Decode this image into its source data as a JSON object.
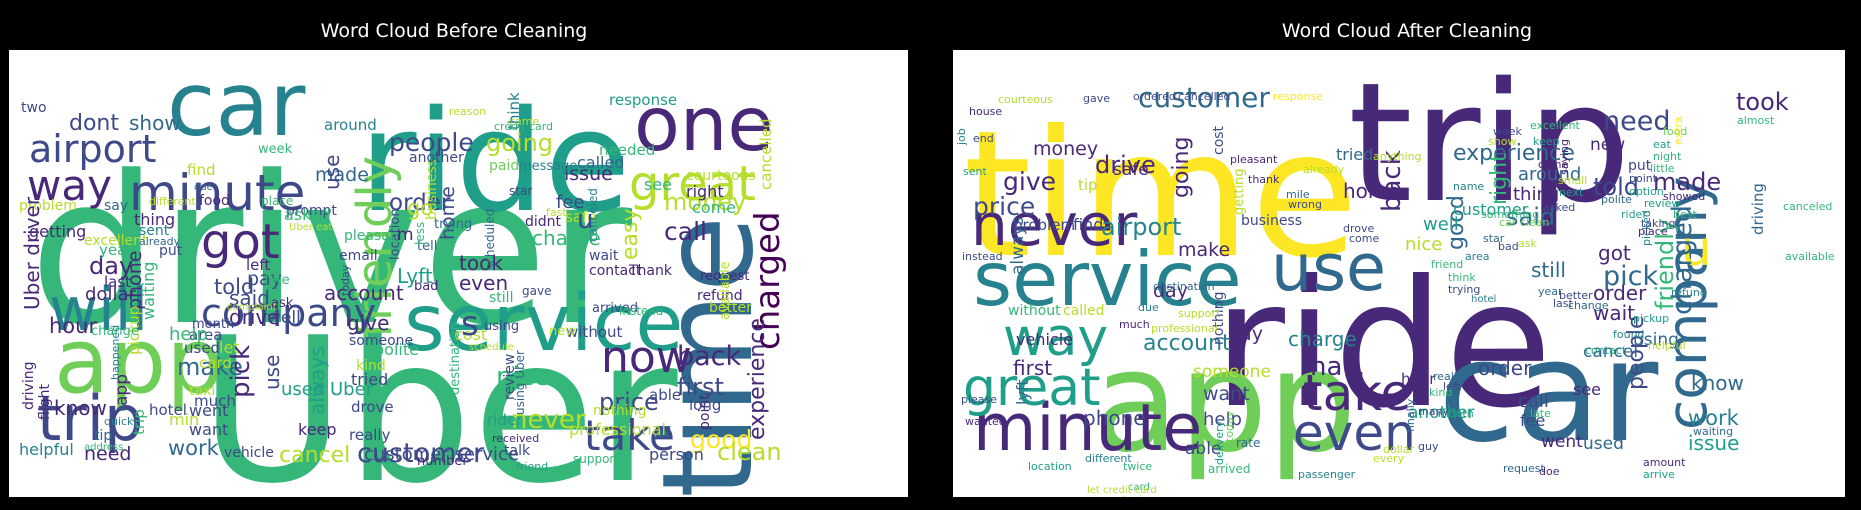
{
  "figure": {
    "left_panel": {
      "title": "Word Cloud Before Cleaning",
      "words": [
        "driver",
        "Uber",
        "ride",
        "car",
        "one",
        "time",
        "service",
        "app",
        "will",
        "trip",
        "minute",
        "way",
        "airport",
        "got",
        "great",
        "friendly",
        "company",
        "charged",
        "now",
        "take",
        "customer",
        "cancel",
        "experience",
        "back",
        "first",
        "never",
        "price",
        "good",
        "clean",
        "nice",
        "people",
        "going",
        "issue",
        "response",
        "call",
        "money",
        "order",
        "business",
        "another",
        "made",
        "dont",
        "show",
        "two",
        "problem",
        "say",
        "excellent",
        "prompt",
        "place",
        "asked",
        "thing",
        "reason",
        "came",
        "star",
        "paid",
        "needed",
        "cancelled",
        "around",
        "find",
        "week",
        "due",
        "go",
        "told",
        "day",
        "dollar",
        "year",
        "last",
        "sent",
        "put",
        "phone",
        "waiting",
        "pickup",
        "driving",
        "flight",
        "app",
        "trip",
        "hour",
        "know",
        "need",
        "helpful",
        "hotel",
        "tip",
        "quick",
        "min",
        "went",
        "want",
        "much",
        "taxi",
        "work",
        "make",
        "used",
        "card",
        "area",
        "help",
        "let",
        "pick",
        "said",
        "drive",
        "pay",
        "late",
        "ask",
        "food",
        "left",
        "getting",
        "different",
        "wrong",
        "month",
        "complaint",
        "change",
        "use",
        "Uber driver",
        "used Uber",
        "keep",
        "vehicle",
        "account",
        "always",
        "really",
        "drove",
        "tried",
        "give",
        "someone",
        "cost",
        "polite",
        "kind",
        "email",
        "location",
        "pleasant",
        "use",
        "m",
        "Lyft",
        "even",
        "still",
        "home",
        "took",
        "bad",
        "tell",
        "trying",
        "less",
        "destination",
        "number",
        "professional",
        "rider",
        "address",
        "happened",
        "today",
        "well",
        "charge",
        "fee",
        "safe",
        "contact",
        "Thank",
        "wait",
        "didnt",
        "easy",
        "canceled",
        "fast",
        "request",
        "refund",
        "better",
        "available",
        "arrived",
        "instead",
        "see",
        "right",
        "come",
        "courteous",
        "called",
        "message",
        "think",
        "scheduled",
        "without",
        "s",
        "u",
        "using Uber",
        "review",
        "long",
        "received",
        "talk",
        "gave",
        "able",
        "nothing",
        "point",
        "person",
        "support",
        "customer service",
        "friend",
        "new",
        "using",
        "credit card",
        "Uber eat",
        "already",
        "schedule"
      ]
    },
    "right_panel": {
      "title": "Word Cloud After Cleaning",
      "words": [
        "time",
        "trip",
        "ride",
        "app",
        "car",
        "service",
        "never",
        "minute",
        "way",
        "use",
        "great",
        "company",
        "customer",
        "take",
        "even",
        "u",
        "money",
        "give",
        "price",
        "experience",
        "need",
        "took",
        "told",
        "said",
        "got",
        "pick",
        "charged",
        "friendly",
        "people",
        "made",
        "know",
        "work",
        "issue",
        "airport",
        "drive",
        "account",
        "charge",
        "ha",
        "phone",
        "want",
        "help",
        "lyft",
        "first",
        "vehicle",
        "always",
        "without",
        "called",
        "day",
        "make",
        "pay",
        "home",
        "good",
        "back",
        "right",
        "still",
        "nice",
        "customer",
        "order",
        "another",
        "hour",
        "call",
        "fee",
        "see",
        "cancel",
        "went",
        "used",
        "able",
        "nothing",
        "someone",
        "business",
        "getting",
        "going",
        "safe",
        "tip",
        "find",
        "problem",
        "cost",
        "tried",
        "thing",
        "well",
        "around",
        "new",
        "put",
        "late",
        "order",
        "wait",
        "using",
        "driving",
        "canceled",
        "available",
        "courteous",
        "gave",
        "ordered",
        "cancelled",
        "response",
        "house",
        "job",
        "end",
        "instead",
        "sent",
        "wanted",
        "please",
        "location",
        "twice",
        "delivery",
        "today",
        "rate",
        "arrived",
        "passenger",
        "guy",
        "request",
        "dollar",
        "every",
        "contact",
        "doe",
        "amount",
        "arrive",
        "waiting",
        "different",
        "card",
        "taxi",
        "let credit card",
        "destination",
        "support",
        "professional",
        "much",
        "due",
        "drove",
        "come",
        "mile",
        "wrong",
        "thank",
        "already",
        "pleasant",
        "star",
        "bad",
        "area",
        "friend",
        "think",
        "trying",
        "really",
        "month",
        "finally",
        "many",
        "kind",
        "hotel",
        "left",
        "last",
        "year",
        "better",
        "change",
        "refund",
        "pickup",
        "helpful",
        "found",
        "showed",
        "little",
        "point",
        "option",
        "night",
        "eat",
        "food",
        "extra",
        "almost",
        "keep",
        "came",
        "saying",
        "asked",
        "name",
        "anything",
        "something",
        "car clean",
        "review",
        "best",
        "taking",
        "polite",
        "rider",
        "place",
        "picked",
        "next",
        "small",
        "excellent",
        "week",
        "ask",
        "show"
      ]
    }
  },
  "colors": {
    "background": "#000000",
    "cloud_background": "#ffffff",
    "title_text": "#ffffff",
    "palette": [
      "#440154",
      "#482878",
      "#3e4989",
      "#31688e",
      "#26828e",
      "#1f9e89",
      "#35b779",
      "#6ece58",
      "#b5de2b",
      "#fde725"
    ]
  }
}
